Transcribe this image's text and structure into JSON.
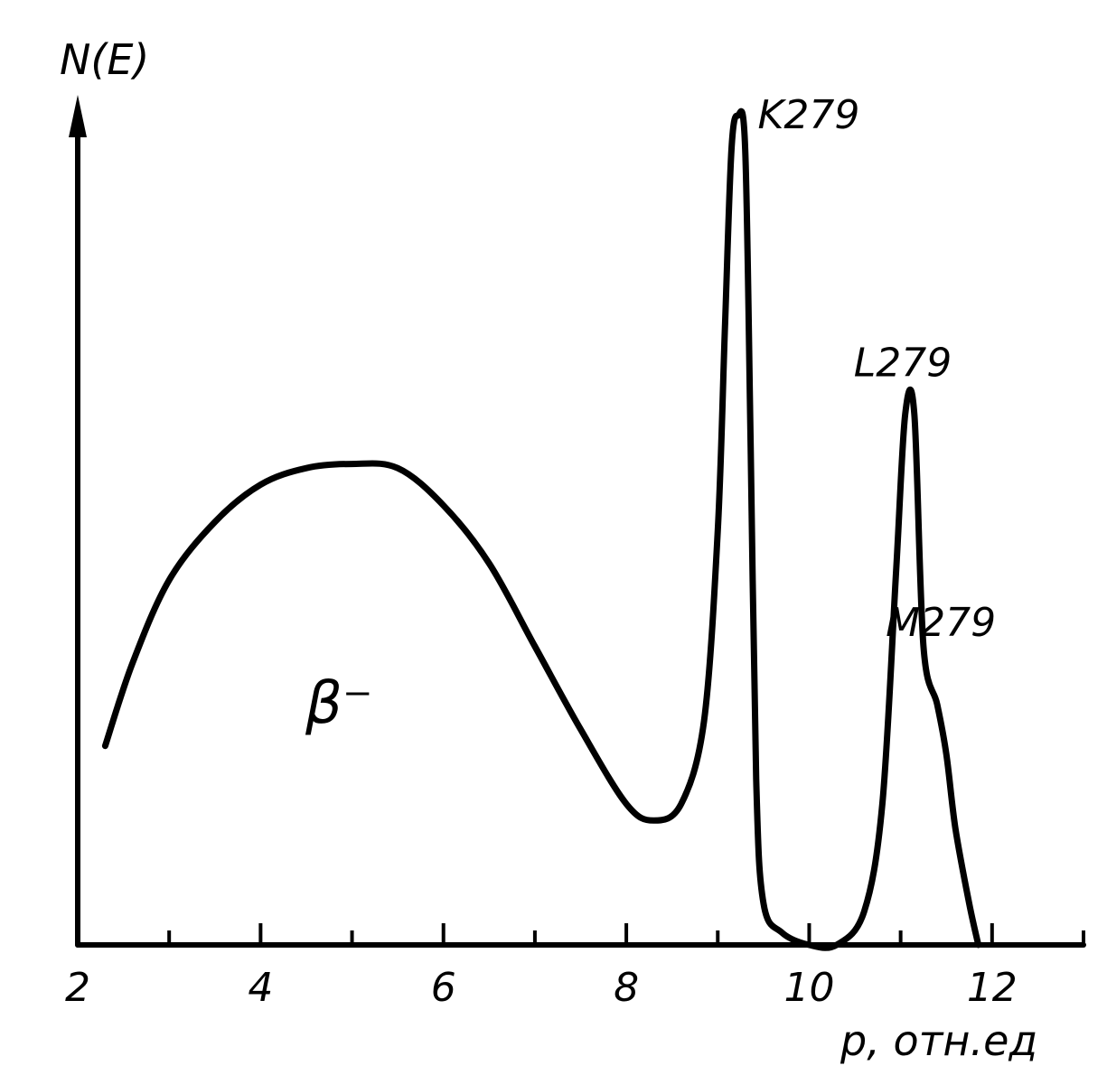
{
  "chart_data": {
    "type": "line",
    "title": "",
    "ylabel": "N(E)",
    "xlabel": "p, отн.ед",
    "xlim": [
      2,
      13
    ],
    "ylim": [
      0,
      100
    ],
    "major_ticks": [
      2,
      4,
      6,
      8,
      10,
      12
    ],
    "minor_ticks": [
      3,
      5,
      7,
      9,
      11,
      13
    ],
    "tick_labels": [
      "2",
      "4",
      "6",
      "8",
      "10",
      "12"
    ],
    "grid": false,
    "legend": "none",
    "curve_label": "β⁻",
    "series": [
      {
        "values": [
          [
            2.3,
            24
          ],
          [
            2.6,
            34
          ],
          [
            3.0,
            44
          ],
          [
            3.5,
            51
          ],
          [
            4.0,
            55.5
          ],
          [
            4.5,
            57.5
          ],
          [
            5.0,
            58
          ],
          [
            5.5,
            57.5
          ],
          [
            6.0,
            53
          ],
          [
            6.5,
            46
          ],
          [
            7.0,
            36
          ],
          [
            7.5,
            26
          ],
          [
            8.0,
            17
          ],
          [
            8.3,
            15
          ],
          [
            8.6,
            17
          ],
          [
            8.85,
            27
          ],
          [
            9.0,
            50
          ],
          [
            9.08,
            75
          ],
          [
            9.15,
            96
          ],
          [
            9.22,
            100
          ],
          [
            9.3,
            96
          ],
          [
            9.36,
            60
          ],
          [
            9.42,
            20
          ],
          [
            9.5,
            5
          ],
          [
            9.7,
            1.5
          ],
          [
            10.0,
            0
          ],
          [
            10.3,
            0
          ],
          [
            10.6,
            4
          ],
          [
            10.8,
            17
          ],
          [
            10.95,
            45
          ],
          [
            11.05,
            64
          ],
          [
            11.15,
            64
          ],
          [
            11.25,
            36
          ],
          [
            11.4,
            29
          ],
          [
            11.5,
            23
          ],
          [
            11.6,
            14
          ],
          [
            11.75,
            5
          ],
          [
            11.85,
            0
          ]
        ]
      }
    ],
    "annotations": [
      {
        "text": "K279",
        "x": 9.22,
        "y": 100
      },
      {
        "text": "L279",
        "x": 11.1,
        "y": 64
      },
      {
        "text": "M279",
        "x": 11.45,
        "y": 29
      }
    ]
  }
}
